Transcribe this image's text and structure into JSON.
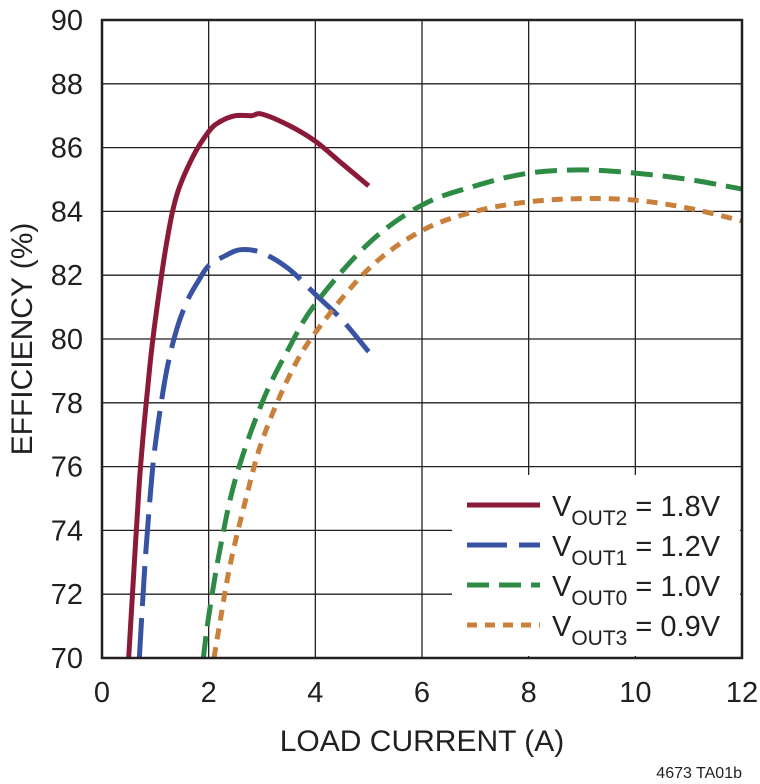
{
  "chart_data": {
    "type": "line",
    "xlabel": "LOAD CURRENT (A)",
    "ylabel": "EFFICIENCY (%)",
    "xlim": [
      0,
      12
    ],
    "ylim": [
      70,
      90
    ],
    "x_ticks": [
      0,
      2,
      4,
      6,
      8,
      10,
      12
    ],
    "y_ticks": [
      70,
      72,
      74,
      76,
      78,
      80,
      82,
      84,
      86,
      88,
      90
    ],
    "grid": true,
    "legend_position": "bottom-right",
    "figure_id": "4673 TA01b",
    "series": [
      {
        "name": "VOUT2 = 1.8V",
        "legend": {
          "main": "V",
          "sub": "OUT2",
          "rest": " = 1.8V"
        },
        "color": "#8b1a38",
        "style": "solid",
        "x": [
          0.5,
          0.6,
          0.7,
          0.8,
          0.9,
          1.0,
          1.2,
          1.4,
          1.7,
          2.0,
          2.2,
          2.5,
          2.8,
          3.0,
          3.5,
          4.0,
          4.5,
          5.0
        ],
        "y": [
          70.0,
          72.8,
          75.5,
          77.5,
          79.2,
          80.6,
          82.9,
          84.5,
          85.7,
          86.5,
          86.8,
          87.0,
          87.0,
          87.05,
          86.7,
          86.2,
          85.5,
          84.8
        ]
      },
      {
        "name": "VOUT1 = 1.2V",
        "legend": {
          "main": "V",
          "sub": "OUT1",
          "rest": " = 1.2V"
        },
        "color": "#3953a4",
        "style": "long-dash",
        "x": [
          0.7,
          0.8,
          0.9,
          1.0,
          1.2,
          1.4,
          1.6,
          1.8,
          2.0,
          2.3,
          2.6,
          3.0,
          3.5,
          4.0,
          4.5,
          5.0
        ],
        "y": [
          70.0,
          72.8,
          75.0,
          76.7,
          78.9,
          80.3,
          81.2,
          81.8,
          82.3,
          82.6,
          82.8,
          82.7,
          82.2,
          81.4,
          80.6,
          79.6
        ]
      },
      {
        "name": "VOUT0 = 1.0V",
        "legend": {
          "main": "V",
          "sub": "OUT0",
          "rest": " = 1.0V"
        },
        "color": "#2e8b45",
        "style": "dash",
        "x": [
          1.9,
          2.0,
          2.2,
          2.5,
          3.0,
          3.5,
          4.0,
          5.0,
          6.0,
          7.0,
          8.0,
          9.0,
          10.0,
          11.0,
          12.0
        ],
        "y": [
          70.0,
          71.3,
          73.3,
          75.6,
          78.0,
          79.7,
          81.1,
          83.0,
          84.2,
          84.8,
          85.2,
          85.3,
          85.2,
          85.0,
          84.7
        ]
      },
      {
        "name": "VOUT3 = 0.9V",
        "legend": {
          "main": "V",
          "sub": "OUT3",
          "rest": " = 0.9V"
        },
        "color": "#c8803a",
        "style": "dotted",
        "x": [
          2.1,
          2.2,
          2.4,
          2.7,
          3.0,
          3.5,
          4.0,
          5.0,
          6.0,
          7.0,
          8.0,
          9.0,
          10.0,
          11.0,
          12.0
        ],
        "y": [
          70.0,
          71.0,
          72.9,
          75.0,
          76.8,
          78.8,
          80.2,
          82.2,
          83.4,
          84.0,
          84.3,
          84.4,
          84.35,
          84.1,
          83.7
        ]
      }
    ]
  }
}
